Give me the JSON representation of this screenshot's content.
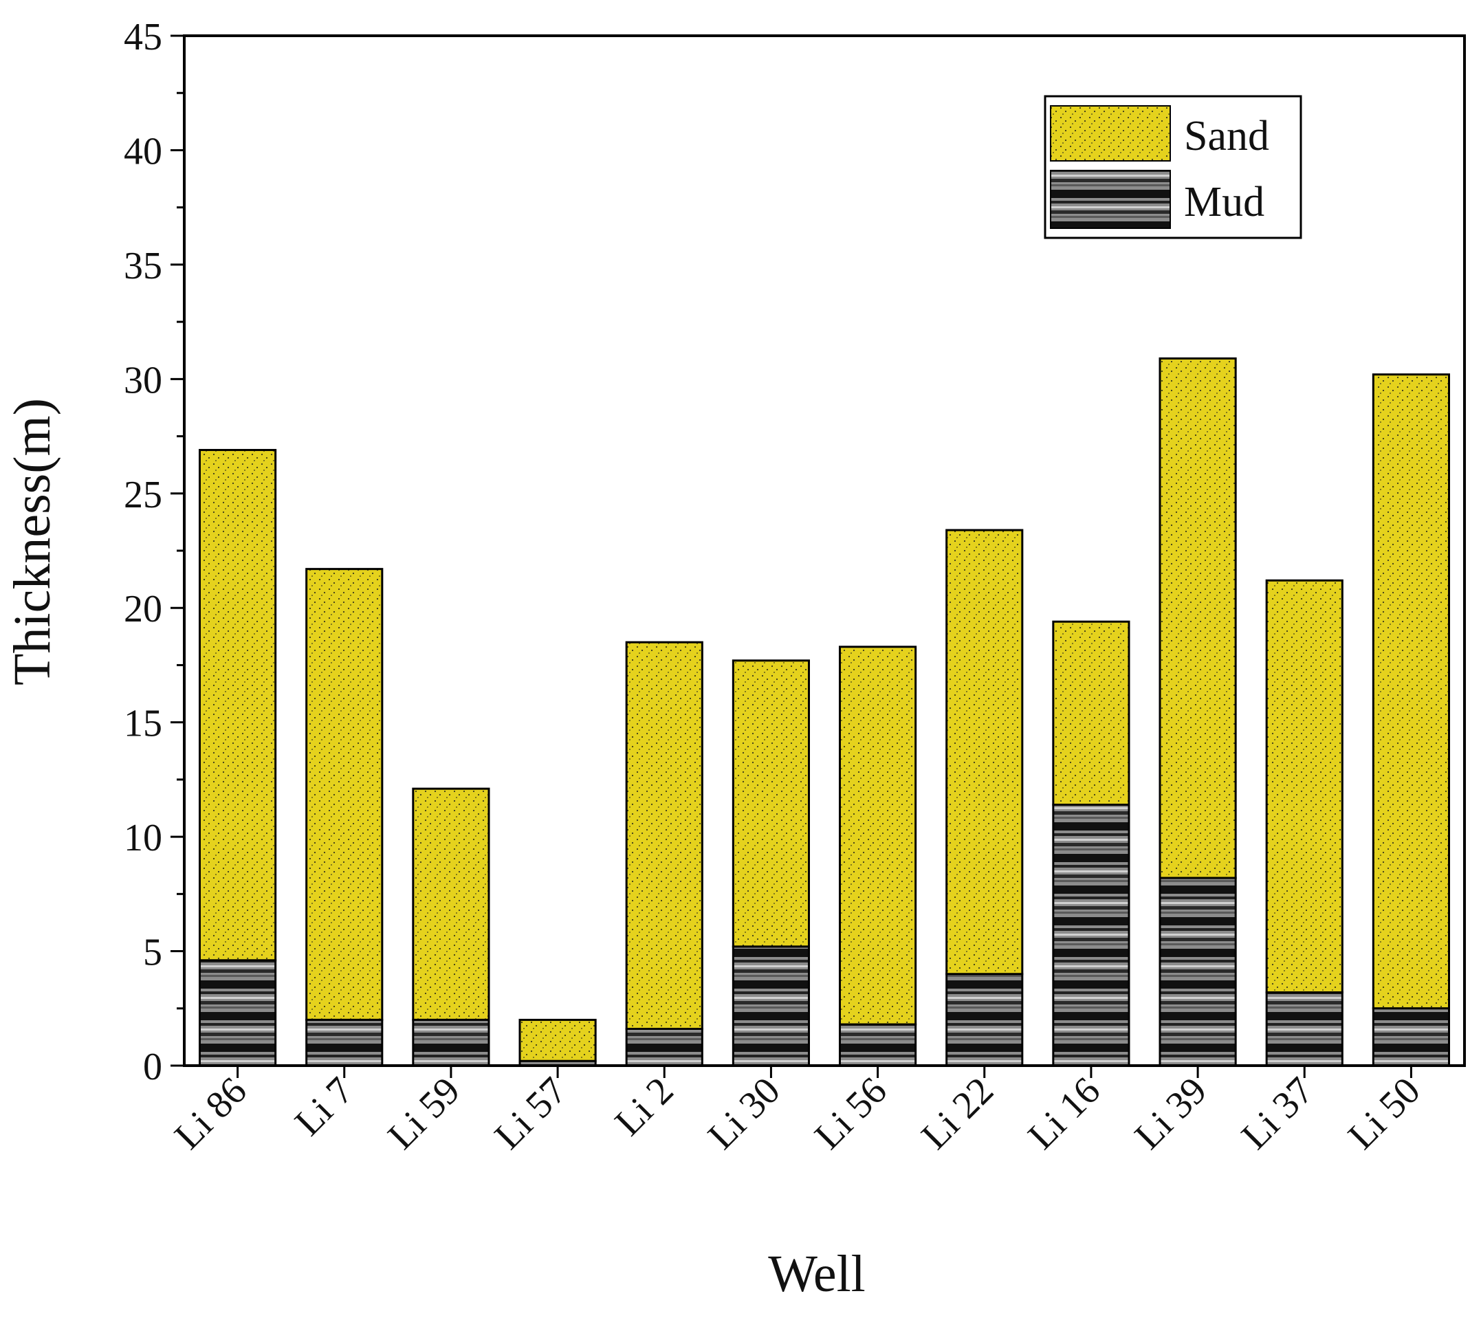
{
  "colors": {
    "sand": "#e5d21d",
    "sand_dots": "#3a3a1a",
    "mud_dark": "#111111",
    "mud_light": "#8c8c8c",
    "axis": "#000000"
  },
  "chart_data": {
    "type": "bar",
    "stacked": true,
    "title": "",
    "xlabel": "Well",
    "ylabel": "Thickness(m)",
    "ylim": [
      0,
      45
    ],
    "yticks": [
      "0",
      "5",
      "10",
      "15",
      "20",
      "25",
      "30",
      "35",
      "40",
      "45"
    ],
    "categories": [
      "Li 86",
      "Li 7",
      "Li 59",
      "Li 57",
      "Li 2",
      "Li 30",
      "Li 56",
      "Li 22",
      "Li 16",
      "Li 39",
      "Li 37",
      "Li 50"
    ],
    "series": [
      {
        "name": "Mud",
        "values": [
          4.6,
          2.0,
          2.0,
          0.2,
          1.6,
          5.2,
          1.8,
          4.0,
          11.4,
          8.2,
          3.2,
          2.5
        ]
      },
      {
        "name": "Sand",
        "values": [
          22.3,
          19.7,
          10.1,
          1.8,
          16.9,
          12.5,
          16.5,
          19.4,
          8.0,
          22.7,
          18.0,
          27.7
        ]
      }
    ],
    "totals": [
      26.9,
      21.7,
      12.1,
      2.0,
      18.5,
      17.7,
      18.3,
      23.4,
      19.4,
      30.9,
      21.2,
      30.2
    ],
    "legend": {
      "position": "top-right",
      "entries": [
        "Sand",
        "Mud"
      ]
    },
    "grid": false
  }
}
